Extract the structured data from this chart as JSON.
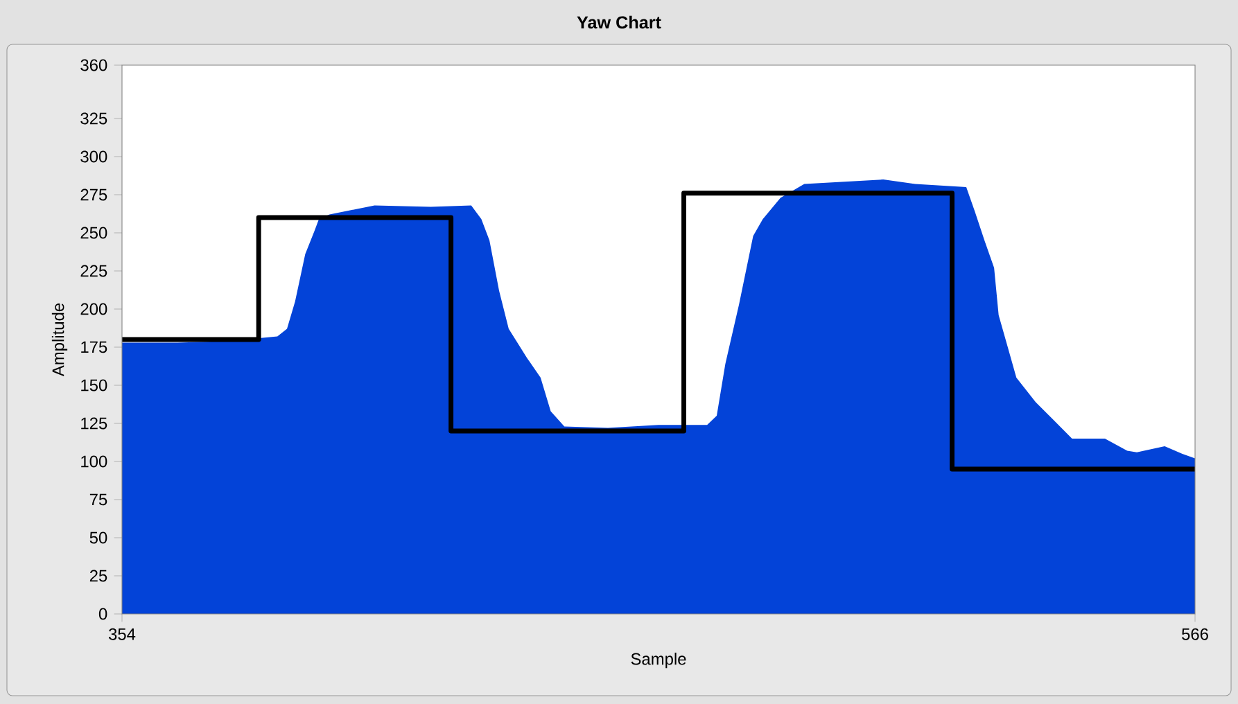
{
  "chart_data": {
    "type": "area",
    "title": "Yaw Chart",
    "xlabel": "Sample",
    "ylabel": "Amplitude",
    "xlim": [
      354,
      566
    ],
    "xticks": [
      354,
      566
    ],
    "ylim": [
      0,
      360
    ],
    "yticks": [
      0,
      25,
      50,
      75,
      100,
      125,
      150,
      175,
      200,
      225,
      250,
      275,
      300,
      325,
      360
    ],
    "grid": false,
    "series": [
      {
        "color": "#0343d8",
        "x": [
          354,
          365,
          375,
          384.7,
          386.6,
          388.2,
          390.2,
          392,
          392.9,
          395,
          403.9,
          415,
          423,
          425,
          426.6,
          428.5,
          430.4,
          434,
          436.7,
          438.7,
          441.4,
          450,
          460,
          469.6,
          471.5,
          473.2,
          475.9,
          478.7,
          480.6,
          484.1,
          488.8,
          504.4,
          510.7,
          520.8,
          522.5,
          524.4,
          526.3,
          527.2,
          529,
          530.7,
          534.5,
          538.1,
          541.7,
          548.2,
          552.6,
          554.5,
          560,
          563.5,
          566
        ],
        "values": [
          178,
          178,
          179,
          182,
          187,
          205,
          236,
          251,
          259,
          262,
          268,
          267,
          268,
          259,
          245,
          212,
          187,
          168,
          155,
          133,
          123,
          122,
          124,
          124,
          130,
          164,
          203,
          248,
          259,
          273,
          282,
          285,
          282,
          280,
          264,
          245,
          227,
          196,
          175,
          155,
          139,
          127,
          115,
          115,
          107,
          106,
          110,
          105,
          102
        ]
      },
      {
        "type": "step",
        "color": "#000000",
        "x": [
          354,
          381,
          419,
          465,
          518,
          566
        ],
        "values": [
          180,
          260,
          120,
          276,
          95,
          95
        ]
      }
    ]
  }
}
